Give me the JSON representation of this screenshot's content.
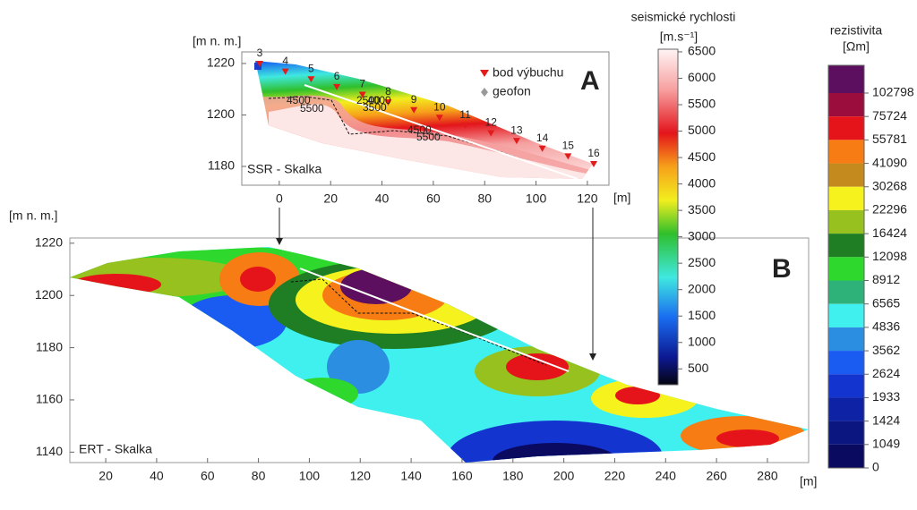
{
  "panel_a": {
    "letter": "A",
    "label": "SSR - Skalka",
    "y_axis_label": "[m n. m.]",
    "x_unit": "[m]",
    "xlim": [
      -14.6,
      128.4
    ],
    "ylim": [
      1172.7,
      1224.5
    ],
    "xticks": [
      0,
      20,
      40,
      60,
      80,
      100,
      120
    ],
    "yticks": [
      1220,
      1200,
      1180
    ],
    "shot_points": [
      3,
      4,
      5,
      6,
      7,
      8,
      9,
      10,
      11,
      12,
      13,
      14,
      15,
      16
    ],
    "legend": [
      "bod výbuchu",
      "geofon"
    ],
    "contour_labels": [
      "4500",
      "5500",
      "2500",
      "4000",
      "3500",
      "4500",
      "5500"
    ]
  },
  "panel_b": {
    "letter": "B",
    "label": "ERT - Skalka",
    "y_axis_label": "[m n. m.]",
    "x_unit": "[m]",
    "xlim": [
      5.9,
      296.2
    ],
    "ylim": [
      1136,
      1222
    ],
    "xticks": [
      20,
      40,
      60,
      80,
      100,
      120,
      140,
      160,
      180,
      200,
      220,
      240,
      260,
      280
    ],
    "yticks": [
      1220,
      1200,
      1180,
      1160,
      1140
    ]
  },
  "velocity_scale": {
    "title": "seismické rychlosti",
    "unit": "[m.s⁻¹]",
    "lim": [
      200,
      6550
    ],
    "ticks": [
      6500,
      6000,
      5500,
      5000,
      4500,
      4000,
      3500,
      3000,
      2500,
      2000,
      1500,
      1000,
      500
    ]
  },
  "resistivity_scale": {
    "title": "rezistivita",
    "unit": "[Ωm]",
    "ticks": [
      102798,
      75724,
      55781,
      41090,
      30268,
      22296,
      16424,
      12098,
      8912,
      6565,
      4836,
      3562,
      2624,
      1933,
      1424,
      1049,
      0
    ],
    "colors": [
      "#5c0f5e",
      "#9a0d3c",
      "#e5141b",
      "#f77c14",
      "#c48a1e",
      "#f6f21e",
      "#96c11f",
      "#1f7d23",
      "#2fd82c",
      "#2fb27a",
      "#3ff0ef",
      "#2b8ee0",
      "#1a5cf2",
      "#1434d0",
      "#0e22a6",
      "#0b1680",
      "#0a0a60"
    ]
  }
}
